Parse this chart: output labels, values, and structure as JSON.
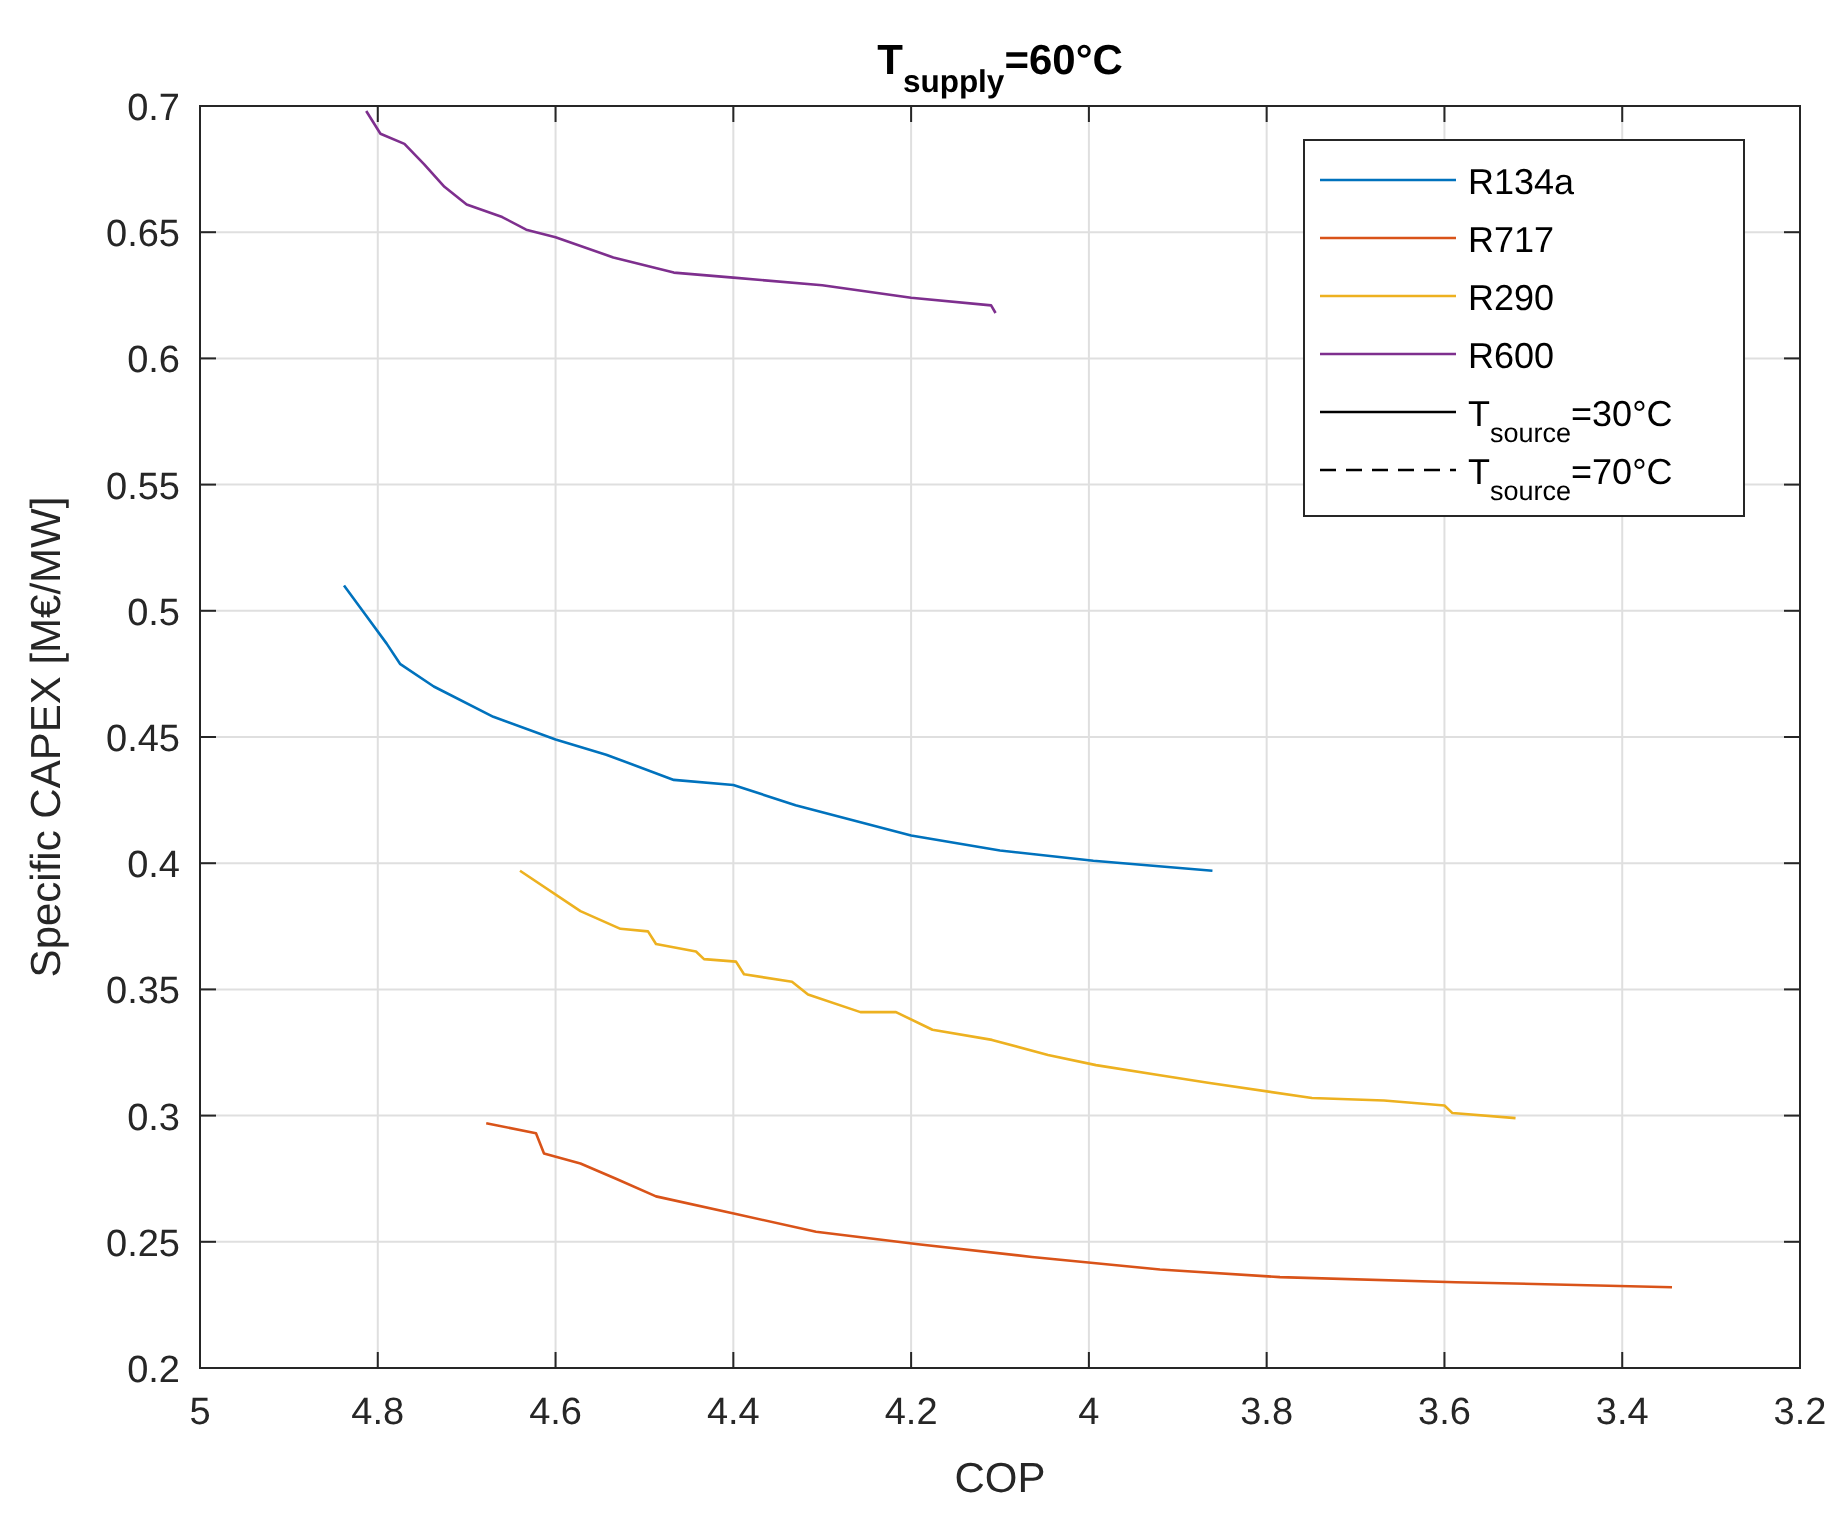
{
  "chart_data": {
    "type": "line",
    "title": "T$_{supply}$=60°C",
    "xlabel": "COP",
    "ylabel": "Specific CAPEX [M€/MW]",
    "xlim": [
      5,
      3.2
    ],
    "xticks": [
      5,
      4.8,
      4.6,
      4.4,
      4.2,
      4,
      3.8,
      3.6,
      3.4,
      3.2
    ],
    "ylim": [
      0.2,
      0.7
    ],
    "yticks": [
      0.2,
      0.25,
      0.3,
      0.35,
      0.4,
      0.45,
      0.5,
      0.55,
      0.6,
      0.65,
      0.7
    ],
    "grid": true,
    "legend": "top right",
    "line_style": "solid",
    "marker": "none",
    "series": [
      {
        "name": "R134a",
        "color": "#0072bd",
        "x": [
          4.838,
          4.813,
          4.79,
          4.775,
          4.737,
          4.67,
          4.6,
          4.543,
          4.467,
          4.4,
          4.33,
          4.2,
          4.1,
          3.995,
          3.861
        ],
        "values": [
          0.51,
          0.498,
          0.487,
          0.479,
          0.47,
          0.458,
          0.449,
          0.443,
          0.433,
          0.431,
          0.423,
          0.411,
          0.405,
          0.401,
          0.397
        ]
      },
      {
        "name": "R717",
        "color": "#d95319",
        "x": [
          4.678,
          4.622,
          4.613,
          4.572,
          4.532,
          4.487,
          4.397,
          4.307,
          4.192,
          4.064,
          3.92,
          3.785,
          3.587,
          3.344
        ],
        "values": [
          0.297,
          0.293,
          0.285,
          0.281,
          0.275,
          0.268,
          0.261,
          0.254,
          0.249,
          0.244,
          0.239,
          0.236,
          0.234,
          0.232
        ]
      },
      {
        "name": "R290",
        "color": "#edb120",
        "x": [
          4.64,
          4.572,
          4.527,
          4.496,
          4.487,
          4.442,
          4.433,
          4.397,
          4.388,
          4.334,
          4.316,
          4.257,
          4.217,
          4.176,
          4.109,
          4.046,
          3.992,
          3.92,
          3.866,
          3.749,
          3.668,
          3.6,
          3.591,
          3.52
        ],
        "values": [
          0.397,
          0.381,
          0.374,
          0.373,
          0.368,
          0.365,
          0.362,
          0.361,
          0.356,
          0.353,
          0.348,
          0.341,
          0.341,
          0.334,
          0.33,
          0.324,
          0.32,
          0.316,
          0.313,
          0.307,
          0.306,
          0.304,
          0.301,
          0.299
        ]
      },
      {
        "name": "R600",
        "color": "#7e2f8e",
        "x": [
          4.813,
          4.797,
          4.77,
          4.748,
          4.725,
          4.7,
          4.66,
          4.633,
          4.6,
          4.535,
          4.467,
          4.4,
          4.3,
          4.2,
          4.11,
          4.105
        ],
        "values": [
          0.698,
          0.689,
          0.685,
          0.677,
          0.668,
          0.661,
          0.656,
          0.651,
          0.648,
          0.64,
          0.634,
          0.632,
          0.629,
          0.624,
          0.621,
          0.618
        ]
      },
      {
        "name": "T$_{source}$=30°C",
        "color": "#000000",
        "line_style": "solid"
      },
      {
        "name": "T$_{source}$=70°C",
        "color": "#000000",
        "line_style": "dashed"
      }
    ]
  }
}
